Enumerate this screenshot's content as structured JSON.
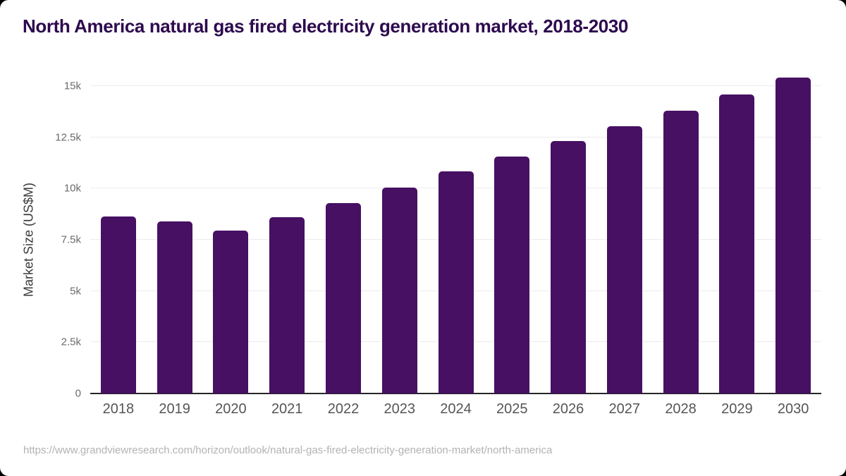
{
  "page": {
    "title": "North America natural gas fired electricity generation market, 2018-2030",
    "source_url": "https://www.grandviewresearch.com/horizon/outlook/natural-gas-fired-electricity-generation-market/north-america"
  },
  "chart_data": {
    "type": "bar",
    "title": "North America natural gas fired electricity generation market, 2018-2030",
    "categories": [
      "2018",
      "2019",
      "2020",
      "2021",
      "2022",
      "2023",
      "2024",
      "2025",
      "2026",
      "2027",
      "2028",
      "2029",
      "2030"
    ],
    "values": [
      8650,
      8400,
      7950,
      8600,
      9300,
      10050,
      10850,
      11550,
      12300,
      13050,
      13800,
      14600,
      15400
    ],
    "xlabel": "",
    "ylabel": "Market Size (US$M)",
    "ylim": [
      0,
      15400
    ],
    "yticks": [
      {
        "value": 0,
        "label": "0"
      },
      {
        "value": 2500,
        "label": "2.5k"
      },
      {
        "value": 5000,
        "label": "5k"
      },
      {
        "value": 7500,
        "label": "7.5k"
      },
      {
        "value": 10000,
        "label": "10k"
      },
      {
        "value": 12500,
        "label": "12.5k"
      },
      {
        "value": 15000,
        "label": "15k"
      }
    ],
    "grid": "horizontal",
    "legend": "none"
  },
  "colors": {
    "bar": "#471063",
    "title_text": "#2d0a4e",
    "gridline": "#ececec",
    "axis_line": "#262626",
    "background": "#ffffff"
  }
}
